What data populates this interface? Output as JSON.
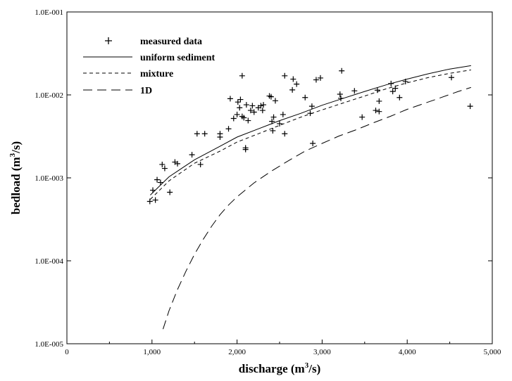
{
  "chart_data": {
    "type": "scatter",
    "xlabel": "discharge (m",
    "xlabel_sup": "3",
    "xlabel_end": "/s)",
    "ylabel": "bedload (m",
    "ylabel_sup": "3",
    "ylabel_end": "/s)",
    "x_scale": "linear",
    "y_scale": "log",
    "xlim": [
      0,
      5000
    ],
    "ylim": [
      1e-05,
      0.1
    ],
    "x_ticks": [
      {
        "value": 0,
        "label": "0"
      },
      {
        "value": 1000,
        "label": "1,000"
      },
      {
        "value": 2000,
        "label": "2,000"
      },
      {
        "value": 3000,
        "label": "3,000"
      },
      {
        "value": 4000,
        "label": "4,000"
      },
      {
        "value": 5000,
        "label": "5,000"
      }
    ],
    "y_ticks": [
      {
        "value": 1e-05,
        "label": "1.0E-005"
      },
      {
        "value": 0.0001,
        "label": "1.0E-004"
      },
      {
        "value": 0.001,
        "label": "1.0E-003"
      },
      {
        "value": 0.01,
        "label": "1.0E-002"
      },
      {
        "value": 0.1,
        "label": "1.0E-001"
      }
    ],
    "grid": false,
    "legend_position": "top-left",
    "series": [
      {
        "name": "measured data",
        "style": "plus",
        "points": [
          [
            975,
            0.00052
          ],
          [
            1010,
            0.00071
          ],
          [
            1040,
            0.00054
          ],
          [
            1060,
            0.00095
          ],
          [
            1100,
            0.00088
          ],
          [
            1120,
            0.00145
          ],
          [
            1150,
            0.0013
          ],
          [
            1210,
            0.00067
          ],
          [
            1270,
            0.00155
          ],
          [
            1300,
            0.00148
          ],
          [
            1470,
            0.0019
          ],
          [
            1530,
            0.0034
          ],
          [
            1570,
            0.00145
          ],
          [
            1620,
            0.0034
          ],
          [
            1800,
            0.0031
          ],
          [
            1800,
            0.0034
          ],
          [
            1900,
            0.0039
          ],
          [
            1920,
            0.009
          ],
          [
            1960,
            0.0052
          ],
          [
            2000,
            0.0058
          ],
          [
            2010,
            0.0082
          ],
          [
            2030,
            0.007
          ],
          [
            2040,
            0.0088
          ],
          [
            2060,
            0.017
          ],
          [
            2060,
            0.0055
          ],
          [
            2080,
            0.0053
          ],
          [
            2100,
            0.0022
          ],
          [
            2100,
            0.0023
          ],
          [
            2110,
            0.0076
          ],
          [
            2130,
            0.0049
          ],
          [
            2160,
            0.0065
          ],
          [
            2180,
            0.0074
          ],
          [
            2200,
            0.0062
          ],
          [
            2250,
            0.007
          ],
          [
            2280,
            0.0074
          ],
          [
            2300,
            0.0065
          ],
          [
            2310,
            0.0076
          ],
          [
            2380,
            0.0097
          ],
          [
            2400,
            0.0095
          ],
          [
            2410,
            0.0048
          ],
          [
            2420,
            0.0037
          ],
          [
            2430,
            0.0054
          ],
          [
            2450,
            0.0085
          ],
          [
            2500,
            0.0045
          ],
          [
            2540,
            0.0058
          ],
          [
            2560,
            0.017
          ],
          [
            2560,
            0.0034
          ],
          [
            2650,
            0.0115
          ],
          [
            2660,
            0.0155
          ],
          [
            2700,
            0.0135
          ],
          [
            2800,
            0.0093
          ],
          [
            2860,
            0.006
          ],
          [
            2880,
            0.0073
          ],
          [
            2890,
            0.0026
          ],
          [
            2930,
            0.0152
          ],
          [
            2980,
            0.016
          ],
          [
            3210,
            0.0102
          ],
          [
            3220,
            0.0091
          ],
          [
            3230,
            0.0195
          ],
          [
            3380,
            0.0112
          ],
          [
            3470,
            0.0054
          ],
          [
            3630,
            0.0065
          ],
          [
            3650,
            0.0114
          ],
          [
            3670,
            0.0084
          ],
          [
            3670,
            0.0063
          ],
          [
            3810,
            0.0137
          ],
          [
            3830,
            0.011
          ],
          [
            3860,
            0.012
          ],
          [
            3910,
            0.0093
          ],
          [
            3980,
            0.0145
          ],
          [
            4520,
            0.0162
          ],
          [
            4740,
            0.0073
          ]
        ]
      },
      {
        "name": "uniform sediment",
        "style": "solid",
        "points": [
          [
            980,
            0.00062
          ],
          [
            1200,
            0.00103
          ],
          [
            1500,
            0.00165
          ],
          [
            1800,
            0.0024
          ],
          [
            2000,
            0.0031
          ],
          [
            2250,
            0.0039
          ],
          [
            2500,
            0.0049
          ],
          [
            2750,
            0.006
          ],
          [
            3000,
            0.0075
          ],
          [
            3250,
            0.0091
          ],
          [
            3500,
            0.011
          ],
          [
            3750,
            0.0132
          ],
          [
            4000,
            0.0155
          ],
          [
            4250,
            0.018
          ],
          [
            4500,
            0.0205
          ],
          [
            4750,
            0.0225
          ]
        ]
      },
      {
        "name": "mixture",
        "style": "short-dash",
        "points": [
          [
            980,
            0.00055
          ],
          [
            1200,
            0.00092
          ],
          [
            1500,
            0.0015
          ],
          [
            1800,
            0.0021
          ],
          [
            2000,
            0.0027
          ],
          [
            2250,
            0.0034
          ],
          [
            2500,
            0.0043
          ],
          [
            2750,
            0.0054
          ],
          [
            3000,
            0.0066
          ],
          [
            3250,
            0.008
          ],
          [
            3500,
            0.0097
          ],
          [
            3750,
            0.0118
          ],
          [
            4000,
            0.014
          ],
          [
            4250,
            0.0162
          ],
          [
            4500,
            0.0182
          ],
          [
            4750,
            0.02
          ]
        ]
      },
      {
        "name": "1D",
        "style": "long-dash",
        "points": [
          [
            1130,
            1.5e-05
          ],
          [
            1200,
            2.5e-05
          ],
          [
            1300,
            4.5e-05
          ],
          [
            1400,
            7.5e-05
          ],
          [
            1500,
            0.00012
          ],
          [
            1600,
            0.00018
          ],
          [
            1700,
            0.00026
          ],
          [
            1800,
            0.00036
          ],
          [
            1900,
            0.00047
          ],
          [
            2000,
            0.00059
          ],
          [
            2200,
            0.00087
          ],
          [
            2400,
            0.0012
          ],
          [
            2600,
            0.0016
          ],
          [
            2800,
            0.0021
          ],
          [
            3000,
            0.0026
          ],
          [
            3200,
            0.0032
          ],
          [
            3400,
            0.0038
          ],
          [
            3600,
            0.0046
          ],
          [
            3800,
            0.0055
          ],
          [
            4000,
            0.0067
          ],
          [
            4200,
            0.0079
          ],
          [
            4400,
            0.0093
          ],
          [
            4600,
            0.011
          ],
          [
            4750,
            0.0123
          ]
        ]
      }
    ]
  }
}
